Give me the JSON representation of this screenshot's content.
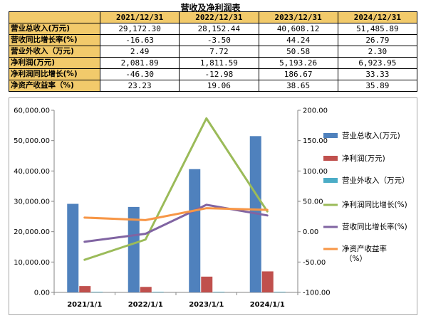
{
  "title": "营收及净利润表",
  "table": {
    "headers": [
      "2021/12/31",
      "2022/12/31",
      "2023/12/31",
      "2024/12/31"
    ],
    "rows": [
      {
        "label": "营业总收入(万元)",
        "values": [
          "29,172.30",
          "28,152.44",
          "40,608.12",
          "51,485.89"
        ]
      },
      {
        "label": "营收同比增长率(%)",
        "values": [
          "-16.63",
          "-3.50",
          "44.24",
          "26.79"
        ]
      },
      {
        "label": "营业外收入（万元)",
        "values": [
          "2.49",
          "7.72",
          "50.58",
          "2.30"
        ]
      },
      {
        "label": "净利润(万元)",
        "values": [
          "2,081.89",
          "1,811.59",
          "5,193.26",
          "6,923.95"
        ]
      },
      {
        "label": "净利润同比增长(%)",
        "values": [
          "-46.30",
          "-12.98",
          "186.67",
          "33.33"
        ]
      },
      {
        "label": "净资产收益率（%)",
        "values": [
          "23.23",
          "19.06",
          "38.65",
          "35.89"
        ]
      }
    ]
  },
  "chart_data": {
    "type": "bar",
    "categories": [
      "2021/1/1",
      "2022/1/1",
      "2023/1/1",
      "2024/1/1"
    ],
    "left_axis": {
      "min": 0,
      "max": 60000,
      "step": 10000,
      "ticks": [
        "0.00",
        "10,000.00",
        "20,000.00",
        "30,000.00",
        "40,000.00",
        "50,000.00",
        "60,000.00"
      ]
    },
    "right_axis": {
      "min": -100,
      "max": 200,
      "step": 50,
      "ticks": [
        "-100.00",
        "-50.00",
        "0.00",
        "50.00",
        "100.00",
        "150.00",
        "200.00"
      ]
    },
    "bar_series": [
      {
        "name": "营业总收入(万元)",
        "color": "#4f81bd",
        "values": [
          29172.3,
          28152.44,
          40608.12,
          51485.89
        ]
      },
      {
        "name": "净利润(万元)",
        "color": "#c0504d",
        "values": [
          2081.89,
          1811.59,
          5193.26,
          6923.95
        ]
      },
      {
        "name": "营业外收入（万元）",
        "color": "#4bacc6",
        "values": [
          2.49,
          7.72,
          50.58,
          2.3
        ]
      }
    ],
    "line_series": [
      {
        "name": "净利润同比增长(%)",
        "color": "#9bbb59",
        "values": [
          -46.3,
          -12.98,
          186.67,
          33.33
        ]
      },
      {
        "name": "营收同比增长率(%)",
        "color": "#8064a2",
        "values": [
          -16.63,
          -3.5,
          44.24,
          26.79
        ]
      },
      {
        "name": "净资产收益率（%）",
        "color": "#f79646",
        "values": [
          23.23,
          19.06,
          38.65,
          35.89
        ]
      }
    ],
    "legend_position": "right",
    "grid": false
  }
}
